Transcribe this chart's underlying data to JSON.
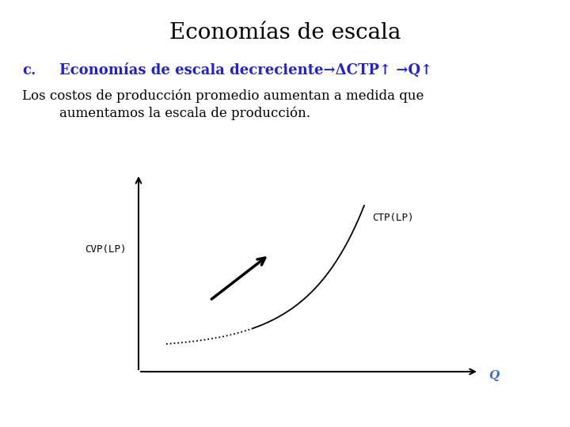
{
  "title": "Economías de escala",
  "title_fontsize": 20,
  "title_color": "#000000",
  "subtitle_c": "c.",
  "subtitle_main": "Economías de escala decreciente→ΔCTP↑ →Q↑",
  "subtitle_fontsize": 13,
  "subtitle_color": "#2222CC",
  "body_line1": "Los costos de producción promedio aumentan a medida que",
  "body_line2": "aumentamos la escala de producción.",
  "body_fontsize": 12,
  "body_color": "#000000",
  "ylabel_text": "CVP(LP)",
  "xlabel_text": "Q",
  "xlabel_color": "#4169E1",
  "curve_label": "CTP(LP)",
  "curve_color": "#000000",
  "arrow_color": "#000000",
  "background_color": "#ffffff"
}
